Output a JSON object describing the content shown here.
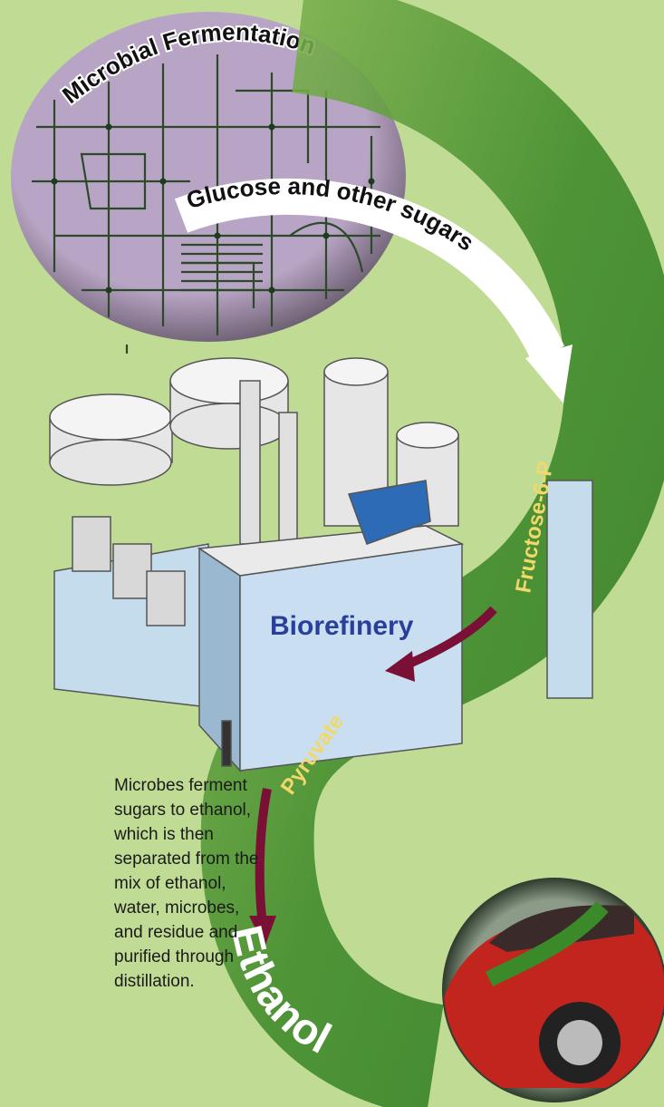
{
  "header": {
    "title": "Microbial Fermentation"
  },
  "labels": {
    "sugars": "Glucose and other sugars",
    "fructose": "Fructose-6-P",
    "plant": "Biorefinery",
    "pyruvate": "Pyruvate",
    "product": "Ethanol"
  },
  "description": [
    "Microbes ferment",
    "sugars to ethanol,",
    "which is then",
    "separated from the",
    "mix of ethanol,",
    "water, microbes,",
    "and residue and",
    "purified through",
    "distillation."
  ]
}
